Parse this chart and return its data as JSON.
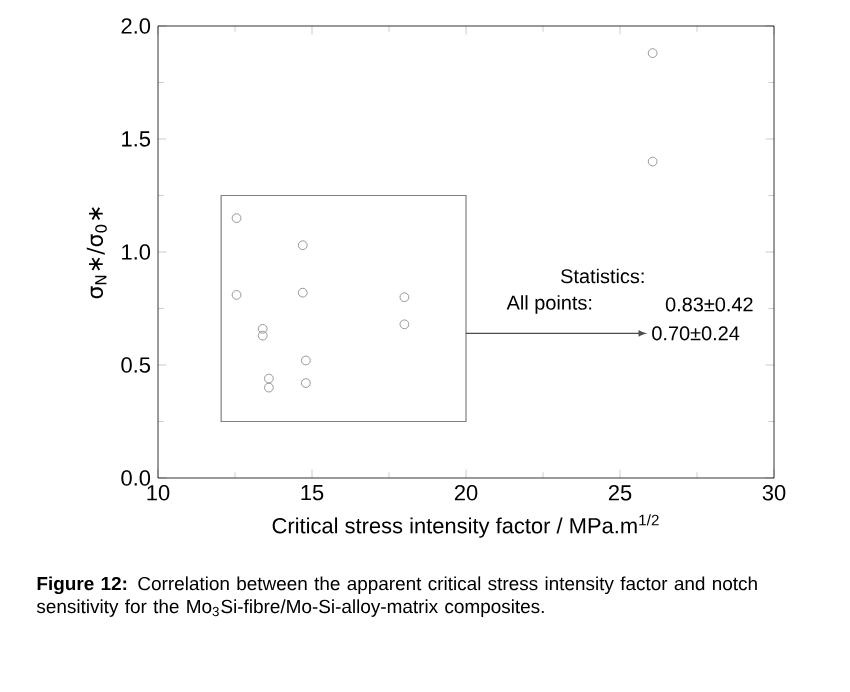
{
  "chart_data": {
    "type": "scatter",
    "xlabel": "Critical stress intensity factor / MPa.m$^{1/2}$",
    "ylabel": "σ$_{N}$∗/σ$_{0}$∗",
    "x": [
      12.55,
      12.55,
      13.4,
      13.4,
      13.6,
      13.6,
      14.7,
      14.7,
      14.8,
      14.8,
      18.0,
      18.0,
      26.06,
      26.06
    ],
    "series": [
      {
        "color": "#808080",
        "values": [
          1.15,
          0.81,
          0.66,
          0.63,
          0.44,
          0.4,
          1.03,
          0.82,
          0.52,
          0.42,
          0.8,
          0.68,
          1.88,
          1.4
        ]
      }
    ],
    "xlim": [
      10,
      30
    ],
    "xticks": [
      10,
      15,
      20,
      25,
      30
    ],
    "ylim": [
      0,
      2
    ],
    "yticks": [
      {
        "value": 0,
        "label": "0.0"
      },
      {
        "value": 0.5,
        "label": "0.5"
      },
      {
        "value": 1,
        "label": "1.0"
      },
      {
        "value": 1.5,
        "label": "1.5"
      },
      {
        "value": 2,
        "label": "2.0"
      }
    ],
    "marker": "circle",
    "grid": false,
    "annotations": [
      "Statistics:",
      "All points:",
      "0.83±0.42",
      "0.70±0.24",
      "**Figure 12:** Correlation between the apparent critical stress intensity factor and notch sensitivity for the Mo$_{3}$Si-fibre/Mo-Si-alloy-matrix composites."
    ]
  }
}
